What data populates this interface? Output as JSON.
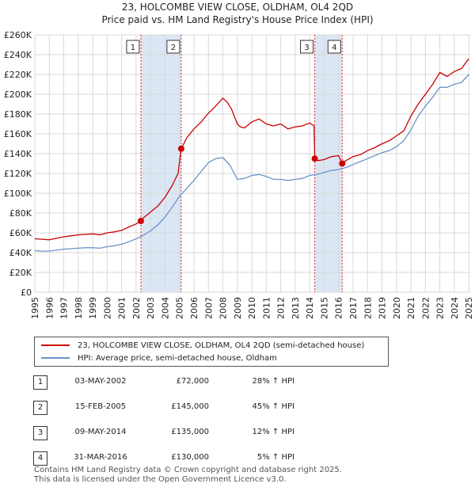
{
  "header": {
    "title": "23, HOLCOMBE VIEW CLOSE, OLDHAM, OL4 2QD",
    "subtitle": "Price paid vs. HM Land Registry's House Price Index (HPI)"
  },
  "colors": {
    "property": "#cc0000",
    "hpi": "#6b93c8",
    "shade": "#dbe6f5",
    "grid": "#d8d8d8",
    "marker_line": "#cc0000"
  },
  "chart_data": {
    "type": "line",
    "title": "Price paid vs. HM Land Registry's House Price Index (HPI)",
    "xlabel": "",
    "ylabel": "",
    "xlim": [
      1995,
      2025.1
    ],
    "ylim": [
      0,
      260000
    ],
    "grid": true,
    "x_ticks": [
      "1995",
      "1996",
      "1997",
      "1998",
      "1999",
      "2000",
      "2001",
      "2002",
      "2003",
      "2004",
      "2005",
      "2006",
      "2007",
      "2008",
      "2009",
      "2010",
      "2011",
      "2012",
      "2013",
      "2014",
      "2015",
      "2016",
      "2017",
      "2018",
      "2019",
      "2020",
      "2021",
      "2022",
      "2023",
      "2024",
      "2025"
    ],
    "y_ticks": [
      "£0",
      "£20K",
      "£40K",
      "£60K",
      "£80K",
      "£100K",
      "£120K",
      "£140K",
      "£160K",
      "£180K",
      "£200K",
      "£220K",
      "£240K",
      "£260K"
    ],
    "series": [
      {
        "name": "23, HOLCOMBE VIEW CLOSE, OLDHAM, OL4 2QD (semi-detached house)",
        "color": "#cc0000",
        "x": [
          1995.0,
          1995.5,
          1996.0,
          1996.5,
          1997.0,
          1997.5,
          1998.0,
          1998.5,
          1999.0,
          1999.5,
          2000.0,
          2000.5,
          2001.0,
          2001.5,
          2002.0,
          2002.33,
          2002.5,
          2003.0,
          2003.5,
          2004.0,
          2004.5,
          2004.9,
          2005.12,
          2005.5,
          2006.0,
          2006.5,
          2007.0,
          2007.5,
          2008.0,
          2008.3,
          2008.6,
          2009.0,
          2009.2,
          2009.5,
          2010.0,
          2010.5,
          2011.0,
          2011.5,
          2012.0,
          2012.5,
          2013.0,
          2013.5,
          2014.0,
          2014.3,
          2014.35,
          2014.6,
          2015.0,
          2015.5,
          2016.0,
          2016.25,
          2016.5,
          2017.0,
          2017.5,
          2018.0,
          2018.5,
          2019.0,
          2019.5,
          2020.0,
          2020.5,
          2021.0,
          2021.5,
          2022.0,
          2022.5,
          2023.0,
          2023.5,
          2024.0,
          2024.5,
          2025.0
        ],
        "y": [
          54000,
          53500,
          53000,
          54500,
          56000,
          57000,
          58000,
          58500,
          59000,
          58000,
          60000,
          61000,
          62500,
          66000,
          69000,
          72000,
          75000,
          81000,
          87000,
          96000,
          108000,
          120000,
          145000,
          156000,
          165000,
          172000,
          181000,
          188000,
          196000,
          192000,
          185000,
          170000,
          167000,
          166000,
          172000,
          175000,
          170000,
          168000,
          170000,
          165000,
          167000,
          168000,
          171000,
          168000,
          135000,
          133000,
          134000,
          137000,
          138000,
          130000,
          133000,
          137000,
          139000,
          143000,
          146000,
          150000,
          153000,
          158000,
          163000,
          178000,
          190000,
          200000,
          210000,
          222000,
          218000,
          223000,
          226000,
          236000
        ]
      },
      {
        "name": "HPI: Average price, semi-detached house, Oldham",
        "color": "#6b93c8",
        "x": [
          1995.0,
          1995.5,
          1996.0,
          1996.5,
          1997.0,
          1997.5,
          1998.0,
          1998.5,
          1999.0,
          1999.5,
          2000.0,
          2000.5,
          2001.0,
          2001.5,
          2002.0,
          2002.5,
          2003.0,
          2003.5,
          2004.0,
          2004.5,
          2005.0,
          2005.5,
          2006.0,
          2006.5,
          2007.0,
          2007.5,
          2008.0,
          2008.5,
          2009.0,
          2009.5,
          2010.0,
          2010.5,
          2011.0,
          2011.5,
          2012.0,
          2012.5,
          2013.0,
          2013.5,
          2014.0,
          2014.5,
          2015.0,
          2015.5,
          2016.0,
          2016.5,
          2017.0,
          2017.5,
          2018.0,
          2018.5,
          2019.0,
          2019.5,
          2020.0,
          2020.5,
          2021.0,
          2021.5,
          2022.0,
          2022.5,
          2023.0,
          2023.5,
          2024.0,
          2024.5,
          2025.0
        ],
        "y": [
          42000,
          41500,
          41500,
          42500,
          43500,
          44000,
          44500,
          45000,
          45000,
          44500,
          46000,
          47000,
          48500,
          51000,
          54000,
          57500,
          62000,
          68000,
          76000,
          86000,
          97000,
          105000,
          113000,
          122000,
          131000,
          135000,
          136000,
          128000,
          114000,
          115000,
          118000,
          119000,
          117000,
          114000,
          114000,
          113000,
          114000,
          115000,
          118000,
          119000,
          121000,
          123000,
          124000,
          126000,
          129000,
          132000,
          135000,
          138000,
          141000,
          143000,
          147000,
          153000,
          164000,
          178000,
          188000,
          197000,
          207000,
          207000,
          210000,
          212000,
          220000
        ]
      }
    ],
    "sales": [
      {
        "label": "1",
        "x": 2002.33,
        "date": "03-MAY-2002",
        "value": 72000,
        "price": "£72,000",
        "pct": "28% ↑ HPI"
      },
      {
        "label": "2",
        "x": 2005.12,
        "date": "15-FEB-2005",
        "value": 145000,
        "price": "£145,000",
        "pct": "45% ↑ HPI"
      },
      {
        "label": "3",
        "x": 2014.35,
        "date": "09-MAY-2014",
        "value": 135000,
        "price": "£135,000",
        "pct": "12% ↑ HPI"
      },
      {
        "label": "4",
        "x": 2016.25,
        "date": "31-MAR-2016",
        "value": 130000,
        "price": "£130,000",
        "pct": "5% ↑ HPI"
      }
    ],
    "shaded_ranges": [
      [
        2002.33,
        2005.12
      ],
      [
        2014.35,
        2016.25
      ]
    ]
  },
  "legend": {
    "property": "23, HOLCOMBE VIEW CLOSE, OLDHAM, OL4 2QD (semi-detached house)",
    "hpi": "HPI: Average price, semi-detached house, Oldham"
  },
  "footer": {
    "line1": "Contains HM Land Registry data © Crown copyright and database right 2025.",
    "line2": "This data is licensed under the Open Government Licence v3.0."
  }
}
